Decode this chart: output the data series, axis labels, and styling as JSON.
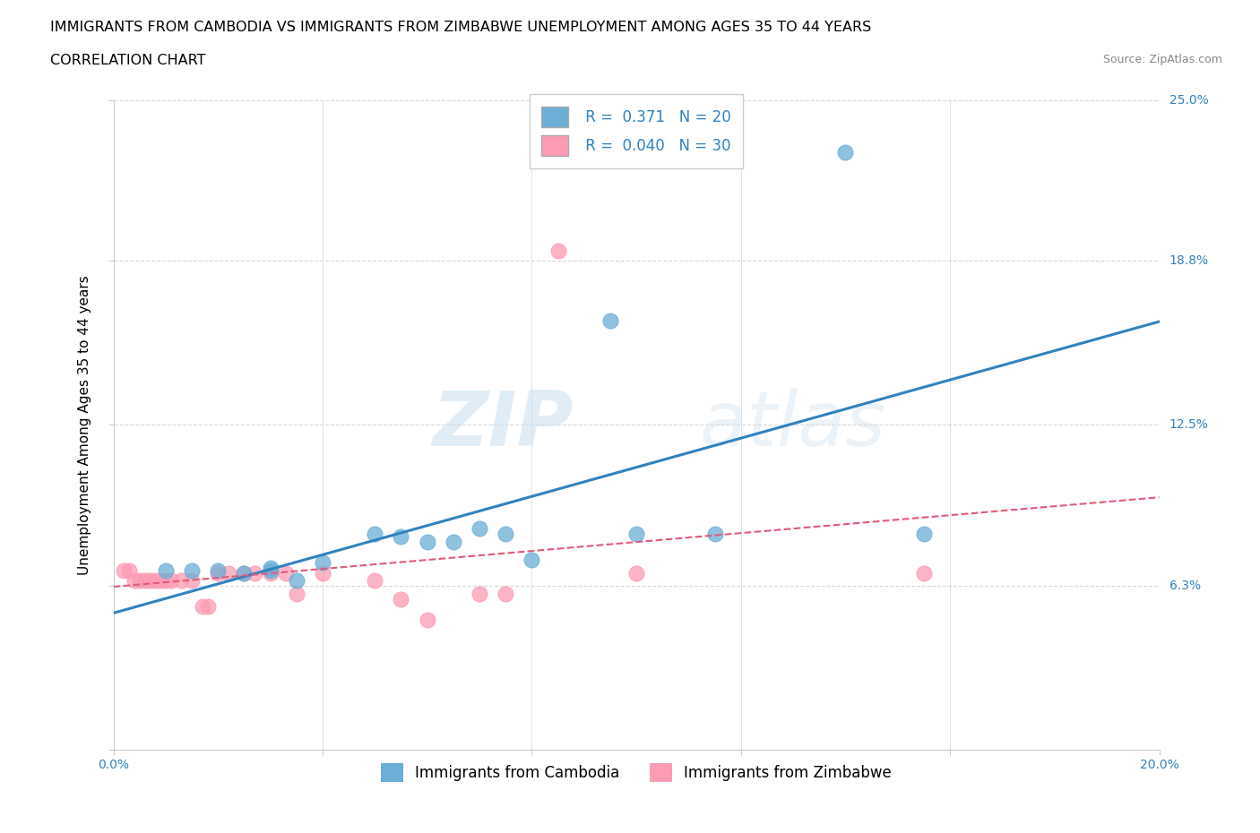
{
  "title": "IMMIGRANTS FROM CAMBODIA VS IMMIGRANTS FROM ZIMBABWE UNEMPLOYMENT AMONG AGES 35 TO 44 YEARS",
  "subtitle": "CORRELATION CHART",
  "source": "Source: ZipAtlas.com",
  "ylabel": "Unemployment Among Ages 35 to 44 years",
  "watermark_zip": "ZIP",
  "watermark_atlas": "atlas",
  "xlim": [
    0.0,
    0.2
  ],
  "ylim": [
    0.0,
    0.25
  ],
  "xticks": [
    0.0,
    0.04,
    0.08,
    0.12,
    0.16,
    0.2
  ],
  "ytick_positions": [
    0.0,
    0.063,
    0.125,
    0.188,
    0.25
  ],
  "ytick_labels": [
    "",
    "6.3%",
    "12.5%",
    "18.8%",
    "25.0%"
  ],
  "cambodia_color": "#6baed6",
  "cambodia_line_color": "#3182bd",
  "zimbabwe_color": "#fc9cb4",
  "zimbabwe_line_color": "#e05a7a",
  "cambodia_R": 0.371,
  "cambodia_N": 20,
  "zimbabwe_R": 0.04,
  "zimbabwe_N": 30,
  "cambodia_x": [
    0.01,
    0.015,
    0.02,
    0.025,
    0.03,
    0.03,
    0.035,
    0.04,
    0.05,
    0.055,
    0.06,
    0.065,
    0.07,
    0.075,
    0.08,
    0.095,
    0.1,
    0.115,
    0.14,
    0.155
  ],
  "cambodia_y": [
    0.069,
    0.069,
    0.069,
    0.068,
    0.07,
    0.069,
    0.065,
    0.072,
    0.083,
    0.082,
    0.08,
    0.08,
    0.085,
    0.083,
    0.073,
    0.165,
    0.083,
    0.083,
    0.23,
    0.083
  ],
  "zimbabwe_x": [
    0.002,
    0.003,
    0.004,
    0.005,
    0.006,
    0.007,
    0.008,
    0.009,
    0.01,
    0.011,
    0.013,
    0.015,
    0.017,
    0.018,
    0.02,
    0.022,
    0.025,
    0.027,
    0.03,
    0.033,
    0.035,
    0.04,
    0.05,
    0.055,
    0.06,
    0.07,
    0.075,
    0.085,
    0.1,
    0.155
  ],
  "zimbabwe_y": [
    0.069,
    0.069,
    0.065,
    0.065,
    0.065,
    0.065,
    0.065,
    0.065,
    0.065,
    0.065,
    0.065,
    0.065,
    0.055,
    0.055,
    0.068,
    0.068,
    0.068,
    0.068,
    0.068,
    0.068,
    0.06,
    0.068,
    0.065,
    0.058,
    0.05,
    0.06,
    0.06,
    0.192,
    0.068,
    0.068
  ],
  "title_fontsize": 11.5,
  "subtitle_fontsize": 11.5,
  "axis_label_fontsize": 11,
  "tick_fontsize": 10,
  "legend_fontsize": 12,
  "background_color": "#ffffff",
  "grid_color": "#d8d8d8"
}
